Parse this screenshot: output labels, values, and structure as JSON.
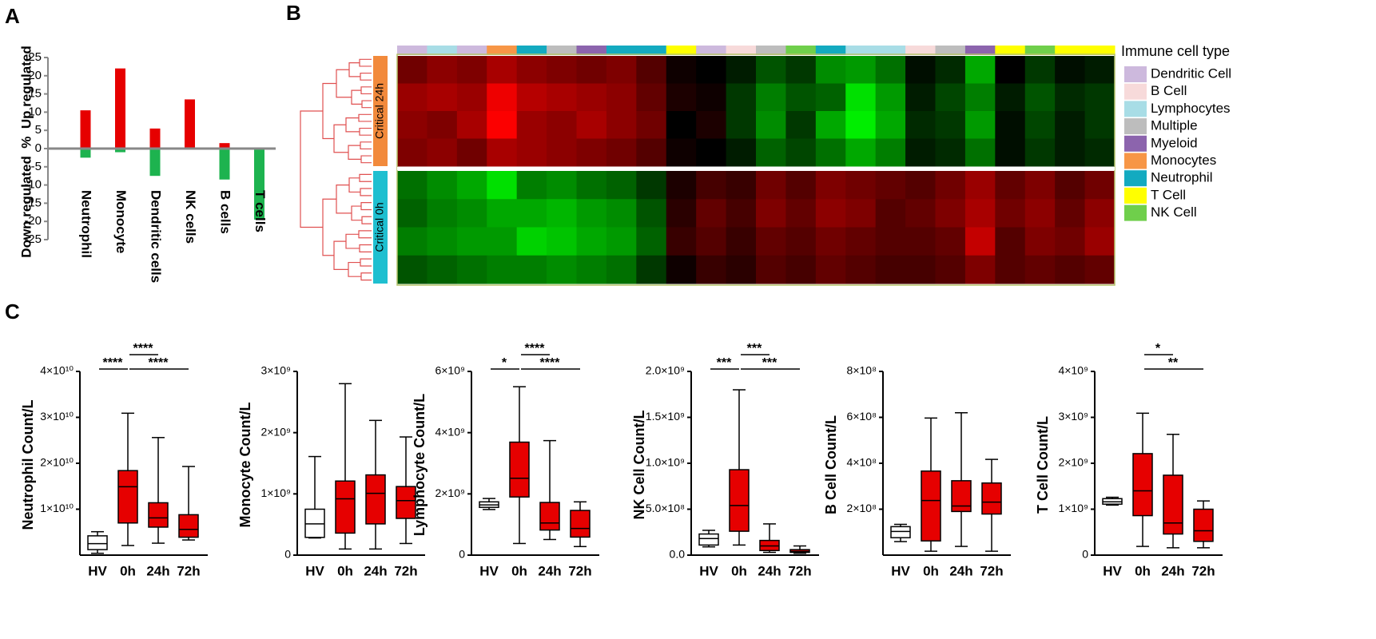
{
  "panel_labels": [
    "A",
    "B",
    "C"
  ],
  "chart_data": [
    {
      "type": "bar",
      "y_label": "Down regulated  %  Up regulated",
      "categories": [
        "Neutrophil",
        "Monocyte",
        "Dendritic cells",
        "NK cells",
        "B cells",
        "T cells"
      ],
      "series": [
        {
          "color": "#e60000",
          "values": [
            10.5,
            22,
            5.5,
            13.5,
            1.5,
            0
          ]
        },
        {
          "color": "#1db34f",
          "values": [
            -2.5,
            -1,
            -7.5,
            0,
            -8.5,
            -19.5
          ]
        }
      ],
      "ylim": [
        -25,
        25
      ],
      "yticks": [
        -25,
        -20,
        -15,
        -10,
        -5,
        0,
        5,
        10,
        15,
        20,
        25
      ]
    },
    {
      "type": "heatmap",
      "legend_title": "Immune cell type",
      "legend": [
        {
          "name": "Dendritic Cell",
          "color": "#cdb9dd"
        },
        {
          "name": "B Cell",
          "color": "#f7dada"
        },
        {
          "name": "Lymphocytes",
          "color": "#a8dde6"
        },
        {
          "name": "Multiple",
          "color": "#bdbdbd"
        },
        {
          "name": "Myeloid",
          "color": "#8c64ad"
        },
        {
          "name": "Monocytes",
          "color": "#f79646"
        },
        {
          "name": "Neutrophil",
          "color": "#13aac0"
        },
        {
          "name": "T Cell",
          "color": "#ffff00"
        },
        {
          "name": "NK Cell",
          "color": "#6fcf4b"
        }
      ],
      "column_types": [
        "Dendritic Cell",
        "Lymphocytes",
        "Dendritic Cell",
        "Monocytes",
        "Neutrophil",
        "Multiple",
        "Myeloid",
        "Neutrophil",
        "Neutrophil",
        "T Cell",
        "Dendritic Cell",
        "B Cell",
        "Multiple",
        "NK Cell",
        "Neutrophil",
        "Lymphocytes",
        "Lymphocytes",
        "B Cell",
        "Multiple",
        "Myeloid",
        "T Cell",
        "NK Cell",
        "T Cell",
        "T Cell"
      ],
      "row_groups": [
        {
          "name": "Critical 24h",
          "color": "#f28a3c",
          "values": [
            [
              0.4,
              0.5,
              0.45,
              0.6,
              0.5,
              0.45,
              0.4,
              0.45,
              0.3,
              0.05,
              0.0,
              -0.1,
              -0.3,
              -0.2,
              -0.5,
              -0.55,
              -0.4,
              -0.05,
              -0.15,
              -0.6,
              0.0,
              -0.2,
              -0.05,
              -0.1
            ],
            [
              0.55,
              0.6,
              0.55,
              0.85,
              0.65,
              0.6,
              0.55,
              0.5,
              0.35,
              0.1,
              0.05,
              -0.2,
              -0.45,
              -0.3,
              -0.35,
              -0.8,
              -0.55,
              -0.1,
              -0.25,
              -0.45,
              -0.1,
              -0.3,
              -0.15,
              -0.2
            ],
            [
              0.5,
              0.45,
              0.6,
              0.9,
              0.55,
              0.5,
              0.6,
              0.5,
              0.4,
              0.0,
              0.1,
              -0.2,
              -0.5,
              -0.2,
              -0.6,
              -0.85,
              -0.6,
              -0.15,
              -0.2,
              -0.55,
              -0.05,
              -0.25,
              -0.1,
              -0.2
            ],
            [
              0.45,
              0.5,
              0.4,
              0.6,
              0.55,
              0.5,
              0.45,
              0.4,
              0.3,
              0.05,
              0.0,
              -0.1,
              -0.35,
              -0.25,
              -0.4,
              -0.6,
              -0.45,
              -0.1,
              -0.15,
              -0.4,
              -0.05,
              -0.2,
              -0.1,
              -0.15
            ]
          ]
        },
        {
          "name": "Critical 0h",
          "color": "#1fbfd0",
          "values": [
            [
              -0.4,
              -0.5,
              -0.6,
              -0.8,
              -0.45,
              -0.5,
              -0.4,
              -0.35,
              -0.2,
              0.1,
              0.25,
              0.2,
              0.4,
              0.3,
              0.45,
              0.4,
              0.35,
              0.3,
              0.4,
              0.55,
              0.35,
              0.45,
              0.3,
              0.4
            ],
            [
              -0.35,
              -0.45,
              -0.5,
              -0.6,
              -0.6,
              -0.65,
              -0.55,
              -0.5,
              -0.3,
              0.15,
              0.35,
              0.25,
              0.45,
              0.35,
              0.5,
              0.45,
              0.3,
              0.35,
              0.45,
              0.6,
              0.4,
              0.5,
              0.35,
              0.5
            ],
            [
              -0.45,
              -0.5,
              -0.55,
              -0.55,
              -0.75,
              -0.7,
              -0.6,
              -0.55,
              -0.35,
              0.2,
              0.3,
              0.2,
              0.35,
              0.3,
              0.4,
              0.35,
              0.3,
              0.3,
              0.35,
              0.7,
              0.3,
              0.45,
              0.4,
              0.55
            ],
            [
              -0.3,
              -0.35,
              -0.4,
              -0.45,
              -0.45,
              -0.5,
              -0.45,
              -0.4,
              -0.2,
              0.05,
              0.2,
              0.15,
              0.3,
              0.25,
              0.35,
              0.3,
              0.25,
              0.25,
              0.3,
              0.45,
              0.3,
              0.35,
              0.3,
              0.35
            ]
          ]
        }
      ]
    },
    {
      "type": "box",
      "y_label": "Neutrophil Count/L",
      "categories": [
        "HV",
        "0h",
        "24h",
        "72h"
      ],
      "colors": [
        "#ffffff",
        "#e60000",
        "#e60000",
        "#e60000"
      ],
      "boxes": [
        {
          "min": 400000000.0,
          "q1": 1200000000.0,
          "median": 2500000000.0,
          "q3": 4200000000.0,
          "max": 5100000000.0
        },
        {
          "min": 2100000000.0,
          "q1": 7000000000.0,
          "median": 14900000000.0,
          "q3": 18400000000.0,
          "max": 30900000000.0
        },
        {
          "min": 2600000000.0,
          "q1": 6100000000.0,
          "median": 8100000000.0,
          "q3": 11400000000.0,
          "max": 25600000000.0
        },
        {
          "min": 3300000000.0,
          "q1": 3900000000.0,
          "median": 5600000000.0,
          "q3": 8800000000.0,
          "max": 19300000000.0
        }
      ],
      "ylim": [
        0,
        40000000000.0
      ],
      "yticks": [
        {
          "value": 10000000000.0,
          "label": "1×10¹⁰"
        },
        {
          "value": 20000000000.0,
          "label": "2×10¹⁰"
        },
        {
          "value": 30000000000.0,
          "label": "3×10¹⁰"
        },
        {
          "value": 40000000000.0,
          "label": "4×10¹⁰"
        }
      ],
      "comparisons": [
        {
          "groups": [
            "HV",
            "0h"
          ],
          "label": "****"
        },
        {
          "groups": [
            "0h",
            "24h"
          ],
          "label": "****"
        },
        {
          "groups": [
            "0h",
            "72h"
          ],
          "label": "****"
        }
      ]
    },
    {
      "type": "box",
      "y_label": "Monocyte Count/L",
      "categories": [
        "HV",
        "0h",
        "24h",
        "72h"
      ],
      "colors": [
        "#ffffff",
        "#e60000",
        "#e60000",
        "#e60000"
      ],
      "boxes": [
        {
          "min": 280000000.0,
          "q1": 290000000.0,
          "median": 510000000.0,
          "q3": 750000000.0,
          "max": 1610000000.0
        },
        {
          "min": 100000000.0,
          "q1": 360000000.0,
          "median": 920000000.0,
          "q3": 1210000000.0,
          "max": 2800000000.0
        },
        {
          "min": 100000000.0,
          "q1": 510000000.0,
          "median": 1010000000.0,
          "q3": 1310000000.0,
          "max": 2200000000.0
        },
        {
          "min": 190000000.0,
          "q1": 600000000.0,
          "median": 890000000.0,
          "q3": 1120000000.0,
          "max": 1930000000.0
        }
      ],
      "ylim": [
        0,
        3000000000.0
      ],
      "yticks": [
        0,
        {
          "value": 1000000000.0,
          "label": "1×10⁹"
        },
        {
          "value": 2000000000.0,
          "label": "2×10⁹"
        },
        {
          "value": 3000000000.0,
          "label": "3×10⁹"
        }
      ],
      "comparisons": []
    },
    {
      "type": "box",
      "y_label": "Lymphocyte Count/L",
      "categories": [
        "HV",
        "0h",
        "24h",
        "72h"
      ],
      "colors": [
        "#ffffff",
        "#e60000",
        "#e60000",
        "#e60000"
      ],
      "boxes": [
        {
          "min": 1490000000.0,
          "q1": 1560000000.0,
          "median": 1640000000.0,
          "q3": 1740000000.0,
          "max": 1850000000.0
        },
        {
          "min": 380000000.0,
          "q1": 1900000000.0,
          "median": 2510000000.0,
          "q3": 3690000000.0,
          "max": 5500000000.0
        },
        {
          "min": 510000000.0,
          "q1": 820000000.0,
          "median": 1050000000.0,
          "q3": 1720000000.0,
          "max": 3740000000.0
        },
        {
          "min": 280000000.0,
          "q1": 590000000.0,
          "median": 870000000.0,
          "q3": 1460000000.0,
          "max": 1740000000.0
        }
      ],
      "ylim": [
        0,
        6000000000.0
      ],
      "yticks": [
        0,
        {
          "value": 2000000000.0,
          "label": "2×10⁹"
        },
        {
          "value": 4000000000.0,
          "label": "4×10⁹"
        },
        {
          "value": 6000000000.0,
          "label": "6×10⁹"
        }
      ],
      "comparisons": [
        {
          "groups": [
            "HV",
            "0h"
          ],
          "label": "*"
        },
        {
          "groups": [
            "0h",
            "24h"
          ],
          "label": "****"
        },
        {
          "groups": [
            "0h",
            "72h"
          ],
          "label": "****"
        }
      ]
    },
    {
      "type": "box",
      "y_label": "NK Cell Count/L",
      "categories": [
        "HV",
        "0h",
        "24h",
        "72h"
      ],
      "colors": [
        "#ffffff",
        "#e60000",
        "#e60000",
        "#e60000"
      ],
      "boxes": [
        {
          "min": 90000000.0,
          "q1": 110000000.0,
          "median": 180000000.0,
          "q3": 230000000.0,
          "max": 270000000.0
        },
        {
          "min": 110000000.0,
          "q1": 260000000.0,
          "median": 540000000.0,
          "q3": 930000000.0,
          "max": 1800000000.0
        },
        {
          "min": 30000000.0,
          "q1": 50000000.0,
          "median": 100000000.0,
          "q3": 160000000.0,
          "max": 340000000.0
        },
        {
          "min": 20000000.0,
          "q1": 30000000.0,
          "median": 40000000.0,
          "q3": 60000000.0,
          "max": 100000000.0
        }
      ],
      "ylim": [
        0,
        2000000000.0
      ],
      "yticks": [
        {
          "value": 0,
          "label": "0.0"
        },
        {
          "value": 500000000.0,
          "label": "5.0×10⁸"
        },
        {
          "value": 1000000000.0,
          "label": "1.0×10⁹"
        },
        {
          "value": 1500000000.0,
          "label": "1.5×10⁹"
        },
        {
          "value": 2000000000.0,
          "label": "2.0×10⁹"
        }
      ],
      "comparisons": [
        {
          "groups": [
            "HV",
            "0h"
          ],
          "label": "***"
        },
        {
          "groups": [
            "0h",
            "24h"
          ],
          "label": "***"
        },
        {
          "groups": [
            "0h",
            "72h"
          ],
          "label": "***"
        }
      ]
    },
    {
      "type": "box",
      "y_label": "B Cell Count/L",
      "categories": [
        "HV",
        "0h",
        "24h",
        "72h"
      ],
      "colors": [
        "#ffffff",
        "#e60000",
        "#e60000",
        "#e60000"
      ],
      "boxes": [
        {
          "min": 59000000.0,
          "q1": 76000000.0,
          "median": 103000000.0,
          "q3": 124000000.0,
          "max": 134000000.0
        },
        {
          "min": 17000000.0,
          "q1": 62000000.0,
          "median": 238000000.0,
          "q3": 366000000.0,
          "max": 597000000.0
        },
        {
          "min": 38000000.0,
          "q1": 190000000.0,
          "median": 214000000.0,
          "q3": 324000000.0,
          "max": 620000000.0
        },
        {
          "min": 17000000.0,
          "q1": 179000000.0,
          "median": 231000000.0,
          "q3": 314000000.0,
          "max": 417000000.0
        }
      ],
      "ylim": [
        0,
        800000000.0
      ],
      "yticks": [
        {
          "value": 200000000.0,
          "label": "2×10⁸"
        },
        {
          "value": 400000000.0,
          "label": "4×10⁸"
        },
        {
          "value": 600000000.0,
          "label": "6×10⁸"
        },
        {
          "value": 800000000.0,
          "label": "8×10⁸"
        }
      ],
      "comparisons": []
    },
    {
      "type": "box",
      "y_label": "T Cell Count/L",
      "categories": [
        "HV",
        "0h",
        "24h",
        "72h"
      ],
      "colors": [
        "#ffffff",
        "#e60000",
        "#e60000",
        "#e60000"
      ],
      "boxes": [
        {
          "min": 1090000000.0,
          "q1": 1110000000.0,
          "median": 1160000000.0,
          "q3": 1230000000.0,
          "max": 1260000000.0
        },
        {
          "min": 190000000.0,
          "q1": 860000000.0,
          "median": 1400000000.0,
          "q3": 2210000000.0,
          "max": 3090000000.0
        },
        {
          "min": 160000000.0,
          "q1": 460000000.0,
          "median": 700000000.0,
          "q3": 1740000000.0,
          "max": 2630000000.0
        },
        {
          "min": 160000000.0,
          "q1": 300000000.0,
          "median": 530000000.0,
          "q3": 1000000000.0,
          "max": 1180000000.0
        }
      ],
      "ylim": [
        0,
        4000000000.0
      ],
      "yticks": [
        0,
        {
          "value": 1000000000.0,
          "label": "1×10⁹"
        },
        {
          "value": 2000000000.0,
          "label": "2×10⁹"
        },
        {
          "value": 3000000000.0,
          "label": "3×10⁹"
        },
        {
          "value": 4000000000.0,
          "label": "4×10⁹"
        }
      ],
      "comparisons": [
        {
          "groups": [
            "0h",
            "24h"
          ],
          "label": "*"
        },
        {
          "groups": [
            "0h",
            "72h"
          ],
          "label": "**"
        }
      ]
    }
  ]
}
